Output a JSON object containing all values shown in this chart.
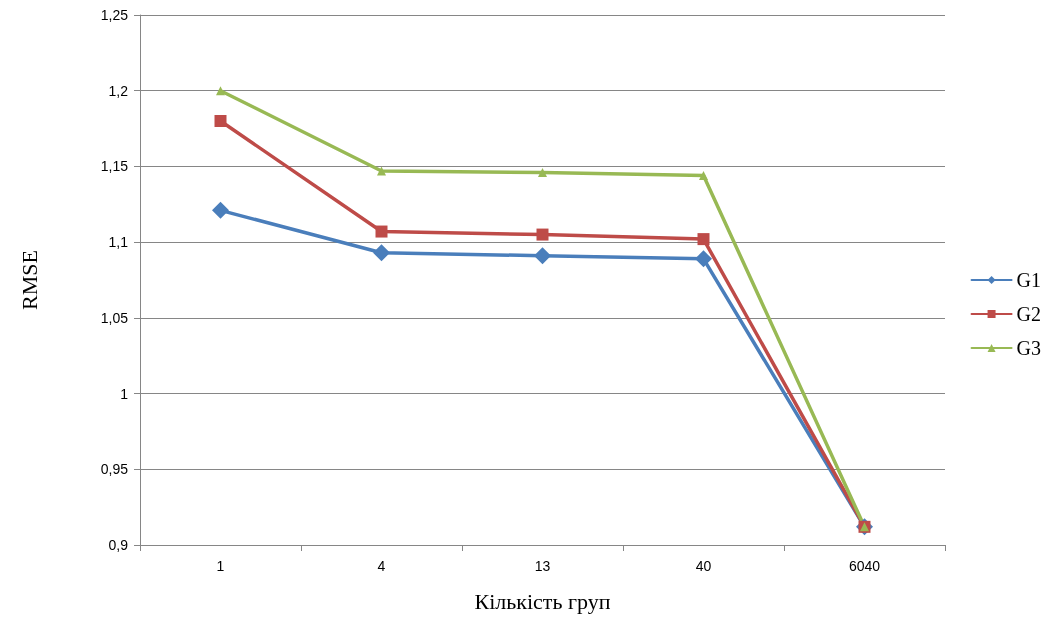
{
  "chart_data": {
    "type": "line",
    "xlabel": "Кількість груп",
    "ylabel": "RMSE",
    "categories": [
      "1",
      "4",
      "13",
      "40",
      "6040"
    ],
    "series": [
      {
        "name": "G1",
        "color": "#4a7ebb",
        "marker": "diamond",
        "values": [
          1.121,
          1.093,
          1.091,
          1.089,
          0.912
        ]
      },
      {
        "name": "G2",
        "color": "#be4b48",
        "marker": "square",
        "values": [
          1.18,
          1.107,
          1.105,
          1.102,
          0.912
        ]
      },
      {
        "name": "G3",
        "color": "#98b954",
        "marker": "triangle",
        "values": [
          1.2,
          1.147,
          1.146,
          1.144,
          0.912
        ]
      }
    ],
    "ylim": [
      0.9,
      1.25
    ],
    "yticks": [
      {
        "value": 0.9,
        "label": "0,9"
      },
      {
        "value": 0.95,
        "label": "0,95"
      },
      {
        "value": 1,
        "label": "1"
      },
      {
        "value": 1.05,
        "label": "1,05"
      },
      {
        "value": 1.1,
        "label": "1,1"
      },
      {
        "value": 1.15,
        "label": "1,15"
      },
      {
        "value": 1.2,
        "label": "1,2"
      },
      {
        "value": 1.25,
        "label": "1,25"
      }
    ],
    "grid": "y",
    "legend": "right",
    "line_style": "solid"
  }
}
